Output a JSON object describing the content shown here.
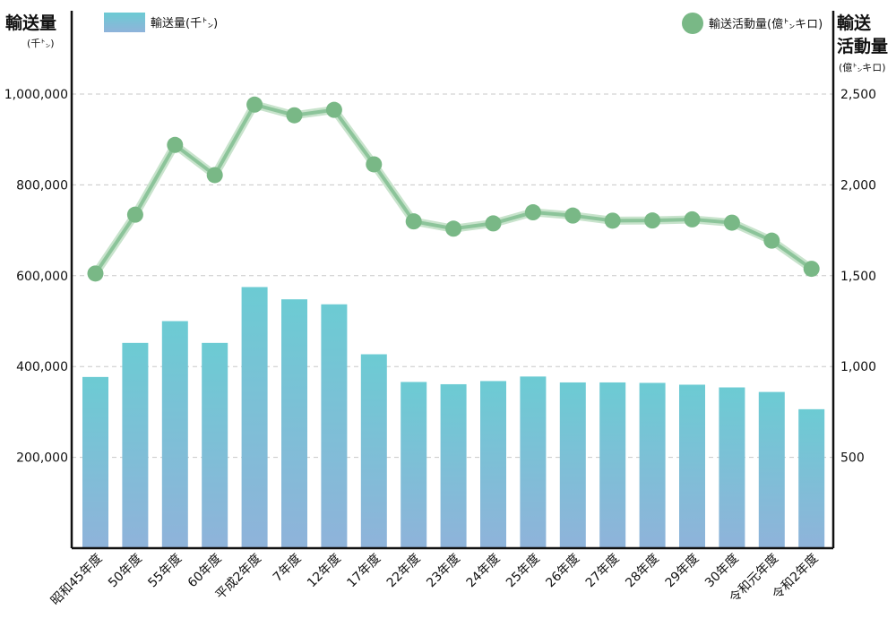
{
  "chart_data": {
    "type": "bar+line",
    "categories": [
      "昭和45年度",
      "50年度",
      "55年度",
      "60年度",
      "平成2年度",
      "7年度",
      "12年度",
      "17年度",
      "22年度",
      "23年度",
      "24年度",
      "25年度",
      "26年度",
      "27年度",
      "28年度",
      "29年度",
      "30年度",
      "令和元年度",
      "令和2年度"
    ],
    "series": [
      {
        "name": "輸送量(千㌧)",
        "type": "bar",
        "axis": "left",
        "values": [
          377000,
          452000,
          500000,
          452000,
          575000,
          548000,
          537000,
          427000,
          366000,
          361000,
          368000,
          378000,
          365000,
          365000,
          364000,
          360000,
          354000,
          344000,
          306000
        ]
      },
      {
        "name": "輸送活動量(億㌧キロ)",
        "type": "line",
        "axis": "right",
        "values": [
          1512,
          1836,
          2220,
          2054,
          2442,
          2383,
          2413,
          2113,
          1799,
          1759,
          1788,
          1849,
          1831,
          1803,
          1804,
          1810,
          1792,
          1693,
          1538
        ]
      }
    ],
    "left_axis": {
      "title": "輸送量",
      "unit": "(千㌧)",
      "ylim": [
        0,
        1000000
      ],
      "ticks": [
        200000,
        400000,
        600000,
        800000,
        1000000
      ],
      "tick_labels": [
        "200,000",
        "400,000",
        "600,000",
        "800,000",
        "1,000,000"
      ]
    },
    "right_axis": {
      "title_line1": "輸送",
      "title_line2": "活動量",
      "unit": "(億㌧キロ)",
      "ylim": [
        0,
        2500
      ],
      "ticks": [
        500,
        1000,
        1500,
        2000,
        2500
      ],
      "tick_labels": [
        "500",
        "1,000",
        "1,500",
        "2,000",
        "2,500"
      ]
    },
    "legend": {
      "placement": "top",
      "bar_label": "輸送量(千㌧)",
      "line_label": "輸送活動量(億㌧キロ)"
    },
    "grid": true,
    "colors": {
      "bar_top": "#6ccbd3",
      "bar_bottom": "#8fb3da",
      "line": "#8cc49a",
      "line_glow": "#c8e3cc",
      "marker": "#79b886",
      "grid": "#c8c8c8",
      "axis": "#111111"
    }
  }
}
